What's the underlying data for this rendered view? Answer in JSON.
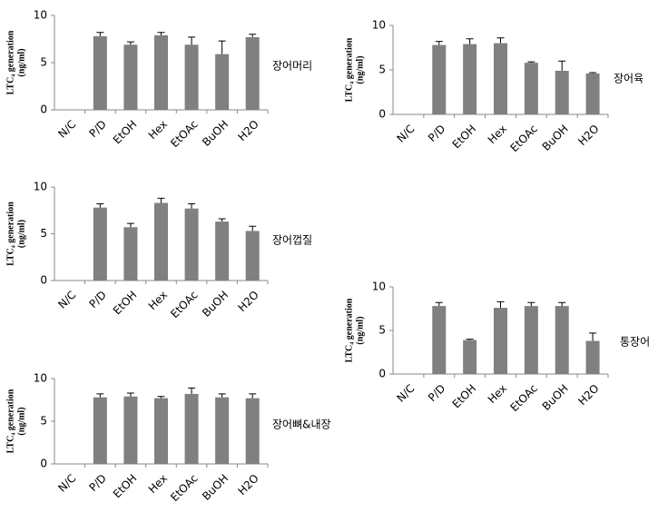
{
  "chart_data": [
    {
      "type": "bar",
      "label": "장어머리",
      "ylabel": [
        "LTC₄ generation",
        "(ng/ml)"
      ],
      "categories": [
        "N/C",
        "P/D",
        "EtOH",
        "Hex",
        "EtOAc",
        "BuOH",
        "H2O"
      ],
      "values": [
        0,
        7.8,
        6.9,
        7.9,
        6.9,
        5.9,
        7.7
      ],
      "errors": [
        0,
        0.4,
        0.3,
        0.3,
        0.8,
        1.4,
        0.3
      ],
      "color": "#808080",
      "ylim": [
        0,
        10
      ],
      "yticks": [
        0,
        5,
        10
      ]
    },
    {
      "type": "bar",
      "label": "장어육",
      "ylabel": [
        "LTC₄ generation",
        "(ng/ml)"
      ],
      "categories": [
        "N/C",
        "P/D",
        "EtOH",
        "Hex",
        "EtOAc",
        "BuOH",
        "H2O"
      ],
      "values": [
        0,
        7.8,
        7.9,
        8.0,
        5.8,
        4.9,
        4.6
      ],
      "errors": [
        0,
        0.4,
        0.6,
        0.6,
        0.1,
        1.1,
        0.1
      ],
      "color": "#808080",
      "ylim": [
        0,
        10
      ],
      "yticks": [
        0,
        5,
        10
      ]
    },
    {
      "type": "bar",
      "label": "장어껍질",
      "ylabel": [
        "LTC₄ generation",
        "(ng/ml)"
      ],
      "categories": [
        "N/C",
        "P/D",
        "EtOH",
        "Hex",
        "EtOAc",
        "BuOH",
        "H2O"
      ],
      "values": [
        0,
        7.8,
        5.7,
        8.3,
        7.7,
        6.3,
        5.3
      ],
      "errors": [
        0,
        0.4,
        0.4,
        0.5,
        0.5,
        0.3,
        0.5
      ],
      "color": "#808080",
      "ylim": [
        0,
        10
      ],
      "yticks": [
        0,
        5,
        10
      ]
    },
    {
      "type": "bar",
      "label": "장어뼈&내장",
      "ylabel": [
        "LTC₄ generation",
        "(ng/ml)"
      ],
      "categories": [
        "N/C",
        "P/D",
        "EtOH",
        "Hex",
        "EtOAc",
        "BuOH",
        "H2O"
      ],
      "values": [
        0,
        7.8,
        7.9,
        7.7,
        8.2,
        7.8,
        7.7
      ],
      "errors": [
        0,
        0.4,
        0.4,
        0.2,
        0.7,
        0.4,
        0.5
      ],
      "color": "#808080",
      "ylim": [
        0,
        10
      ],
      "yticks": [
        0,
        5,
        10
      ]
    },
    {
      "type": "bar",
      "label": "통장어",
      "ylabel": [
        "LTC₄ generation",
        "(ng/ml)"
      ],
      "categories": [
        "N/C",
        "P/D",
        "EtOH",
        "Hex",
        "EtOAc",
        "BuOH",
        "H2O"
      ],
      "values": [
        0,
        7.8,
        3.9,
        7.6,
        7.8,
        7.8,
        3.8
      ],
      "errors": [
        0,
        0.4,
        0.1,
        0.7,
        0.4,
        0.4,
        0.9
      ],
      "color": "#808080",
      "ylim": [
        0,
        10
      ],
      "yticks": [
        0,
        5,
        10
      ]
    }
  ]
}
